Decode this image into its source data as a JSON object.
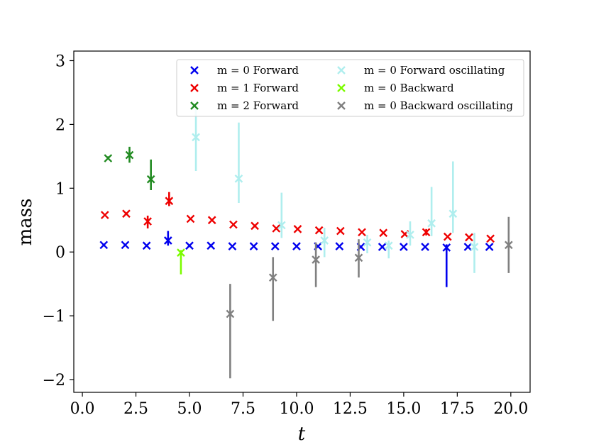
{
  "chart_data": {
    "type": "scatter",
    "title": "",
    "xlabel": "t",
    "ylabel": "mass",
    "xlim": [
      -0.4,
      20.9
    ],
    "ylim": [
      -2.2,
      3.15
    ],
    "xticks": [
      0.0,
      2.5,
      5.0,
      7.5,
      10.0,
      12.5,
      15.0,
      17.5,
      20.0
    ],
    "xtick_labels": [
      "0.0",
      "2.5",
      "5.0",
      "7.5",
      "10.0",
      "12.5",
      "15.0",
      "17.5",
      "20.0"
    ],
    "yticks": [
      -2,
      -1,
      0,
      1,
      2,
      3
    ],
    "ytick_labels": [
      "−2",
      "−1",
      "0",
      "1",
      "2",
      "3"
    ],
    "grid": false,
    "legend_position": "top-right",
    "marker": "x",
    "series": [
      {
        "name": "m = 0 Forward",
        "color": "#0000ee",
        "points": [
          {
            "x": 1,
            "y": 0.11,
            "lo": 0.11,
            "hi": 0.11
          },
          {
            "x": 2,
            "y": 0.11,
            "lo": 0.11,
            "hi": 0.11
          },
          {
            "x": 3,
            "y": 0.1,
            "lo": 0.1,
            "hi": 0.1
          },
          {
            "x": 4,
            "y": 0.18,
            "lo": 0.1,
            "hi": 0.33
          },
          {
            "x": 5,
            "y": 0.1,
            "lo": 0.1,
            "hi": 0.1
          },
          {
            "x": 6,
            "y": 0.1,
            "lo": 0.1,
            "hi": 0.1
          },
          {
            "x": 7,
            "y": 0.09,
            "lo": 0.09,
            "hi": 0.09
          },
          {
            "x": 8,
            "y": 0.09,
            "lo": 0.09,
            "hi": 0.09
          },
          {
            "x": 9,
            "y": 0.09,
            "lo": 0.09,
            "hi": 0.09
          },
          {
            "x": 10,
            "y": 0.09,
            "lo": 0.09,
            "hi": 0.09
          },
          {
            "x": 11,
            "y": 0.09,
            "lo": 0.09,
            "hi": 0.09
          },
          {
            "x": 12,
            "y": 0.09,
            "lo": 0.09,
            "hi": 0.09
          },
          {
            "x": 13,
            "y": 0.08,
            "lo": 0.08,
            "hi": 0.08
          },
          {
            "x": 14,
            "y": 0.08,
            "lo": 0.08,
            "hi": 0.08
          },
          {
            "x": 15,
            "y": 0.08,
            "lo": 0.08,
            "hi": 0.08
          },
          {
            "x": 16,
            "y": 0.08,
            "lo": 0.08,
            "hi": 0.08
          },
          {
            "x": 17,
            "y": 0.07,
            "lo": -0.55,
            "hi": 0.12
          },
          {
            "x": 18,
            "y": 0.08,
            "lo": 0.08,
            "hi": 0.08
          },
          {
            "x": 19,
            "y": 0.08,
            "lo": 0.08,
            "hi": 0.08
          }
        ]
      },
      {
        "name": "m = 1 Forward",
        "color": "#ee0000",
        "points": [
          {
            "x": 1.05,
            "y": 0.58,
            "lo": 0.58,
            "hi": 0.58
          },
          {
            "x": 2.05,
            "y": 0.6,
            "lo": 0.6,
            "hi": 0.6
          },
          {
            "x": 3.05,
            "y": 0.48,
            "lo": 0.37,
            "hi": 0.57
          },
          {
            "x": 4.05,
            "y": 0.8,
            "lo": 0.72,
            "hi": 0.94
          },
          {
            "x": 5.05,
            "y": 0.52,
            "lo": 0.52,
            "hi": 0.52
          },
          {
            "x": 6.05,
            "y": 0.5,
            "lo": 0.5,
            "hi": 0.5
          },
          {
            "x": 7.05,
            "y": 0.43,
            "lo": 0.43,
            "hi": 0.43
          },
          {
            "x": 8.05,
            "y": 0.41,
            "lo": 0.41,
            "hi": 0.41
          },
          {
            "x": 9.05,
            "y": 0.37,
            "lo": 0.37,
            "hi": 0.37
          },
          {
            "x": 10.05,
            "y": 0.36,
            "lo": 0.36,
            "hi": 0.36
          },
          {
            "x": 11.05,
            "y": 0.34,
            "lo": 0.34,
            "hi": 0.34
          },
          {
            "x": 12.05,
            "y": 0.33,
            "lo": 0.33,
            "hi": 0.33
          },
          {
            "x": 13.05,
            "y": 0.31,
            "lo": 0.31,
            "hi": 0.31
          },
          {
            "x": 14.05,
            "y": 0.3,
            "lo": 0.3,
            "hi": 0.3
          },
          {
            "x": 15.05,
            "y": 0.28,
            "lo": 0.28,
            "hi": 0.28
          },
          {
            "x": 16.05,
            "y": 0.31,
            "lo": 0.26,
            "hi": 0.36
          },
          {
            "x": 17.05,
            "y": 0.24,
            "lo": 0.24,
            "hi": 0.24
          },
          {
            "x": 18.05,
            "y": 0.23,
            "lo": 0.23,
            "hi": 0.23
          },
          {
            "x": 19.05,
            "y": 0.21,
            "lo": 0.21,
            "hi": 0.21
          }
        ]
      },
      {
        "name": "m = 2 Forward",
        "color": "#228b22",
        "points": [
          {
            "x": 1.2,
            "y": 1.47,
            "lo": 1.45,
            "hi": 1.5
          },
          {
            "x": 2.2,
            "y": 1.52,
            "lo": 1.4,
            "hi": 1.65
          },
          {
            "x": 3.2,
            "y": 1.14,
            "lo": 0.97,
            "hi": 1.45
          }
        ]
      },
      {
        "name": "m = 0 Forward oscillating",
        "color": "#afeeee",
        "points": [
          {
            "x": 5.3,
            "y": 1.8,
            "lo": 1.27,
            "hi": 2.25
          },
          {
            "x": 7.3,
            "y": 1.15,
            "lo": 0.77,
            "hi": 2.03
          },
          {
            "x": 9.3,
            "y": 0.42,
            "lo": 0.22,
            "hi": 0.93
          },
          {
            "x": 11.3,
            "y": 0.18,
            "lo": -0.08,
            "hi": 0.38
          },
          {
            "x": 13.3,
            "y": 0.15,
            "lo": -0.02,
            "hi": 0.27
          },
          {
            "x": 14.3,
            "y": 0.1,
            "lo": -0.1,
            "hi": 0.18
          },
          {
            "x": 15.3,
            "y": 0.27,
            "lo": 0.1,
            "hi": 0.48
          },
          {
            "x": 16.3,
            "y": 0.45,
            "lo": 0.25,
            "hi": 1.02
          },
          {
            "x": 17.3,
            "y": 0.6,
            "lo": 0.3,
            "hi": 1.42
          },
          {
            "x": 18.3,
            "y": 0.08,
            "lo": -0.33,
            "hi": 0.3
          }
        ]
      },
      {
        "name": "m = 0 Backward",
        "color": "#7cfc00",
        "points": [
          {
            "x": 4.6,
            "y": -0.01,
            "lo": -0.35,
            "hi": 0.03
          }
        ]
      },
      {
        "name": "m = 0 Backward oscillating",
        "color": "#808080",
        "points": [
          {
            "x": 6.9,
            "y": -0.97,
            "lo": -1.98,
            "hi": -0.5
          },
          {
            "x": 8.9,
            "y": -0.4,
            "lo": -1.08,
            "hi": -0.08
          },
          {
            "x": 10.9,
            "y": -0.12,
            "lo": -0.55,
            "hi": 0.15
          },
          {
            "x": 12.9,
            "y": -0.09,
            "lo": -0.4,
            "hi": 0.2
          },
          {
            "x": 19.9,
            "y": 0.11,
            "lo": -0.33,
            "hi": 0.55
          }
        ]
      }
    ]
  }
}
